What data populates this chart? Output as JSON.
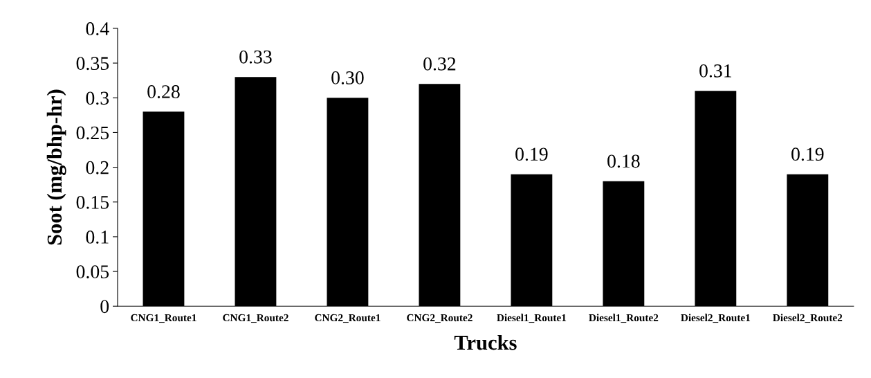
{
  "chart_data": {
    "type": "bar",
    "xlabel": "Trucks",
    "ylabel": "Soot (mg/bhp-hr)",
    "categories": [
      "CNG1_Route1",
      "CNG1_Route2",
      "CNG2_Route1",
      "CNG2_Route2",
      "Diesel1_Route1",
      "Diesel1_Route2",
      "Diesel2_Route1",
      "Diesel2_Route2"
    ],
    "values": [
      0.28,
      0.33,
      0.3,
      0.32,
      0.19,
      0.18,
      0.31,
      0.19
    ],
    "value_labels": [
      "0.28",
      "0.33",
      "0.30",
      "0.32",
      "0.19",
      "0.18",
      "0.31",
      "0.19"
    ],
    "color": "#000000",
    "ylim": [
      0,
      0.4
    ],
    "yticks": [
      0,
      0.05,
      0.1,
      0.15,
      0.2,
      0.25,
      0.3,
      0.35,
      0.4
    ],
    "grid": false,
    "legend": false
  }
}
